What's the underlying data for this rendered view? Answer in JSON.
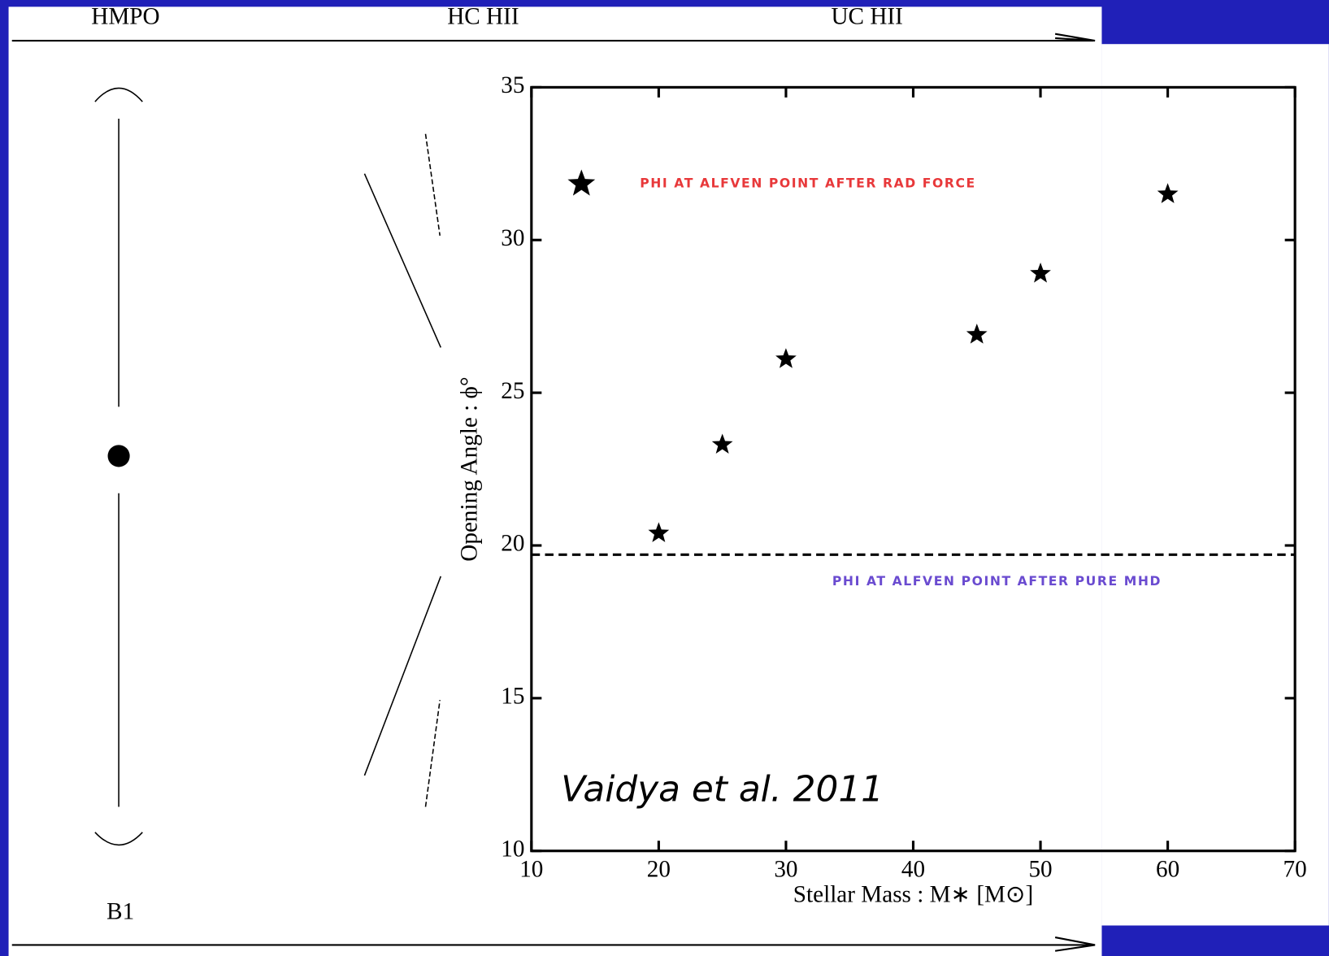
{
  "diagram": {
    "stages": [
      "HMPO",
      "HC HII",
      "UC HII"
    ],
    "source_label": "B1"
  },
  "chart_data": {
    "type": "scatter",
    "x_label": "Stellar Mass : M∗ [M⊙]",
    "y_label": "Opening Angle : ϕ°",
    "annotation": "Vaidya et al. 2011",
    "x": [
      20,
      25,
      30,
      45,
      50,
      60
    ],
    "series": [
      {
        "name": "PHI AT ALFVEN POINT AFTER RAD FORCE",
        "color": "#000000",
        "legend_color": "#e8383a",
        "values": [
          20.4,
          23.3,
          26.1,
          26.9,
          28.9,
          31.5
        ]
      }
    ],
    "reference_line": {
      "name": "PHI AT ALFVEN POINT AFTER PURE MHD",
      "value": 19.7,
      "color": "#6a4bd0"
    },
    "xlim": [
      10,
      70
    ],
    "xticks": [
      10,
      20,
      30,
      40,
      50,
      60,
      70
    ],
    "ylim": [
      10,
      35
    ],
    "yticks": [
      10,
      15,
      20,
      25,
      30,
      35
    ]
  }
}
